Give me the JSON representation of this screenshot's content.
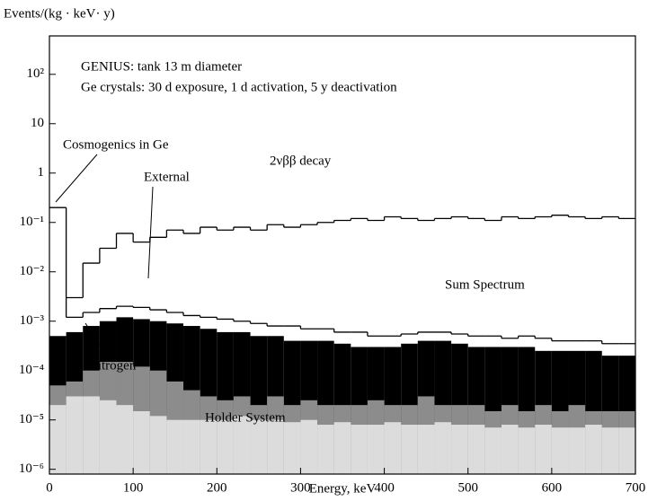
{
  "chart_data": {
    "type": "histogram",
    "annotations": [
      "GENIUS: tank 13 m diameter",
      "Ge crystals: 30 d exposure, 1 d activation, 5 y deactivation",
      "Cosmogenics in Ge"
    ],
    "y_label": "Events/(kg · keV· y)",
    "x_label": "Energy, keV",
    "log_y": true,
    "bins": [
      0,
      20,
      40,
      60,
      80,
      100,
      120,
      140,
      160,
      180,
      200,
      220,
      240,
      260,
      280,
      300,
      320,
      340,
      360,
      380,
      400,
      420,
      440,
      460,
      480,
      500,
      520,
      540,
      560,
      580,
      600,
      620,
      640,
      660,
      680,
      700
    ],
    "xlim": [
      0,
      700
    ],
    "xticks": [
      0,
      100,
      200,
      300,
      400,
      500,
      600,
      700
    ],
    "ylim": [
      8e-07,
      600
    ],
    "yticks": [
      {
        "value": 100,
        "label": "10²"
      },
      10,
      1,
      {
        "value": 0.1,
        "label": "10⁻¹"
      },
      {
        "value": 0.01,
        "label": "10⁻²"
      },
      {
        "value": 0.001,
        "label": "10⁻³"
      },
      {
        "value": 0.0001,
        "label": "10⁻⁴"
      },
      {
        "value": 1e-05,
        "label": "10⁻⁵"
      },
      {
        "value": 1e-06,
        "label": "10⁻⁶"
      }
    ],
    "series": [
      {
        "name": "Sum Spectrum",
        "color": "#ffffff",
        "values": [
          0.2,
          0.0012,
          0.0015,
          0.0018,
          0.002,
          0.0019,
          0.0017,
          0.0015,
          0.0013,
          0.0012,
          0.0011,
          0.001,
          0.0009,
          0.0008,
          0.0008,
          0.0007,
          0.0007,
          0.0006,
          0.0006,
          0.0005,
          0.0005,
          0.00055,
          0.0006,
          0.0006,
          0.00055,
          0.0005,
          0.0005,
          0.00045,
          0.0005,
          0.00045,
          0.0004,
          0.0004,
          0.0004,
          0.00035,
          0.00035
        ]
      },
      {
        "name": "External",
        "color": "#000000",
        "values": [
          0.0005,
          0.0006,
          0.0008,
          0.001,
          0.0012,
          0.0011,
          0.001,
          0.0009,
          0.0008,
          0.0007,
          0.0006,
          0.0006,
          0.0005,
          0.0005,
          0.0004,
          0.0004,
          0.0004,
          0.00035,
          0.0003,
          0.0003,
          0.0003,
          0.00035,
          0.0004,
          0.0004,
          0.00035,
          0.0003,
          0.0003,
          0.0003,
          0.0003,
          0.00025,
          0.00025,
          0.00025,
          0.00025,
          0.0002,
          0.0002
        ]
      },
      {
        "name": "Nitrogen",
        "color": "#8c8c8c",
        "values": [
          5e-05,
          6e-05,
          0.0001,
          0.00015,
          0.00015,
          0.00012,
          0.0001,
          6e-05,
          4e-05,
          3e-05,
          2.5e-05,
          3e-05,
          2e-05,
          3e-05,
          2e-05,
          2.5e-05,
          2e-05,
          2e-05,
          2e-05,
          2.5e-05,
          2e-05,
          2e-05,
          3e-05,
          2e-05,
          2e-05,
          2e-05,
          1.5e-05,
          2e-05,
          1.5e-05,
          2e-05,
          1.5e-05,
          2e-05,
          1.5e-05,
          1.5e-05,
          1.5e-05
        ]
      },
      {
        "name": "Holder System",
        "color": "#dcdcdc",
        "values": [
          2e-05,
          3e-05,
          3e-05,
          2.5e-05,
          2e-05,
          1.5e-05,
          1.2e-05,
          1e-05,
          1e-05,
          1e-05,
          1e-05,
          1.2e-05,
          1e-05,
          1e-05,
          9e-06,
          1e-05,
          8e-06,
          9e-06,
          8e-06,
          8e-06,
          9e-06,
          8e-06,
          8e-06,
          9e-06,
          8e-06,
          8e-06,
          7e-06,
          8e-06,
          7e-06,
          8e-06,
          7e-06,
          7e-06,
          8e-06,
          7e-06,
          7e-06
        ]
      },
      {
        "name": "2νββ decay",
        "color": "#000000",
        "fill": false,
        "values": [
          null,
          0.003,
          0.015,
          0.03,
          0.06,
          0.04,
          0.05,
          0.07,
          0.06,
          0.08,
          0.07,
          0.08,
          0.07,
          0.09,
          0.08,
          0.09,
          0.1,
          0.11,
          0.12,
          0.11,
          0.13,
          0.12,
          0.11,
          0.12,
          0.13,
          0.12,
          0.11,
          0.13,
          0.12,
          0.13,
          0.14,
          0.13,
          0.12,
          0.13,
          0.12
        ]
      }
    ]
  }
}
